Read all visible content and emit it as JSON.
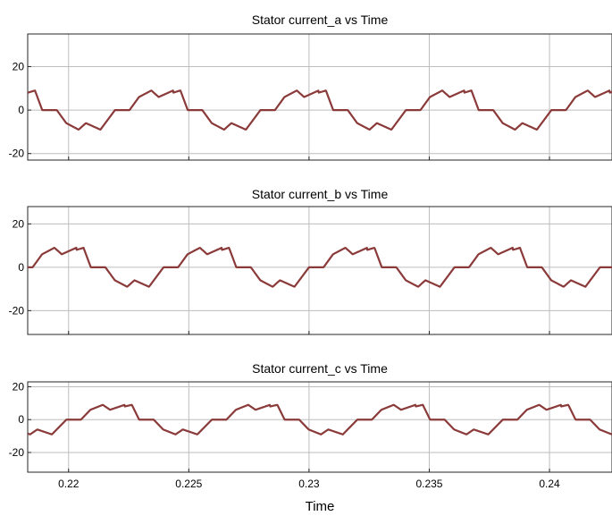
{
  "chart_data": [
    {
      "type": "line",
      "title": "Stator current_a vs Time",
      "xlim": [
        0.2183,
        0.2426
      ],
      "ylim": [
        -23,
        35
      ],
      "xticks": [
        0.22,
        0.225,
        0.23,
        0.235,
        0.24
      ],
      "xtick_labels": [],
      "yticks": [
        -20,
        0,
        20
      ],
      "ytick_labels": [
        "-20",
        "0",
        "20"
      ],
      "xlabel": "",
      "ylabel": "",
      "grid": true,
      "color": "#8b3a3a",
      "phase_shift": 0.0
    },
    {
      "type": "line",
      "title": "Stator current_b vs Time",
      "xlim": [
        0.2183,
        0.2426
      ],
      "ylim": [
        -31,
        28
      ],
      "xticks": [
        0.22,
        0.225,
        0.23,
        0.235,
        0.24
      ],
      "xtick_labels": [],
      "yticks": [
        -20,
        0,
        20
      ],
      "ytick_labels": [
        "-20",
        "0",
        "20"
      ],
      "xlabel": "",
      "ylabel": "",
      "grid": true,
      "color": "#8b3a3a",
      "phase_shift": -0.00202
    },
    {
      "type": "line",
      "title": "Stator current_c vs Time",
      "xlim": [
        0.2183,
        0.2426
      ],
      "ylim": [
        -32,
        23
      ],
      "xticks": [
        0.22,
        0.225,
        0.23,
        0.235,
        0.24
      ],
      "xtick_labels": [
        "0.22",
        "0.225",
        "0.23",
        "0.235",
        "0.24"
      ],
      "yticks": [
        -20,
        0,
        20
      ],
      "ytick_labels": [
        "-20",
        "0",
        "20"
      ],
      "xlabel": "Time",
      "ylabel": "",
      "grid": true,
      "color": "#8b3a3a",
      "phase_shift": 0.00202
    }
  ],
  "waveform": {
    "period": 0.00605,
    "t0": 0.2183,
    "shape": [
      [
        0.0,
        8.0
      ],
      [
        0.05,
        9.0
      ],
      [
        0.1,
        0.0
      ],
      [
        0.2,
        0.0
      ],
      [
        0.265,
        -6.0
      ],
      [
        0.35,
        -9.0
      ],
      [
        0.4,
        -6.0
      ],
      [
        0.5,
        -9.0
      ],
      [
        0.6,
        0.0
      ],
      [
        0.7,
        0.0
      ],
      [
        0.765,
        6.0
      ],
      [
        0.85,
        9.0
      ],
      [
        0.9,
        6.0
      ],
      [
        1.0,
        9.0
      ]
    ]
  }
}
